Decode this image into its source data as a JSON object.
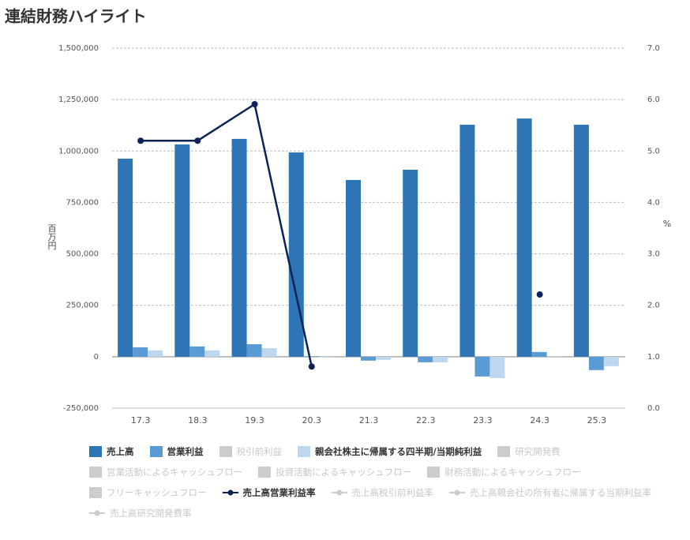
{
  "chart_data": {
    "type": "bar",
    "title": "連結財務ハイライト",
    "y_label": "百万円",
    "y2_label": "%",
    "categories": [
      "17.3",
      "18.3",
      "19.3",
      "20.3",
      "21.3",
      "22.3",
      "23.3",
      "24.3",
      "25.3"
    ],
    "ylim": [
      -250000,
      1500000
    ],
    "yticks": [
      {
        "value": -250000,
        "label": "-250,000"
      },
      0,
      {
        "value": 250000,
        "label": "250,000"
      },
      {
        "value": 500000,
        "label": "500,000"
      },
      {
        "value": 750000,
        "label": "750,000"
      },
      {
        "value": 1000000,
        "label": "1,000,000"
      },
      {
        "value": 1250000,
        "label": "1,250,000"
      },
      {
        "value": 1500000,
        "label": "1,500,000"
      }
    ],
    "y2lim": [
      0,
      7
    ],
    "y2ticks": [
      {
        "value": 0,
        "label": "0.0"
      },
      {
        "value": 1,
        "label": "1.0"
      },
      {
        "value": 2,
        "label": "2.0"
      },
      {
        "value": 3,
        "label": "3.0"
      },
      {
        "value": 4,
        "label": "4.0"
      },
      {
        "value": 5,
        "label": "5.0"
      },
      {
        "value": 6,
        "label": "6.0"
      },
      {
        "value": 7,
        "label": "7.0"
      }
    ],
    "grid": true,
    "series": [
      {
        "name": "売上高",
        "type": "bar",
        "color": "#2e75b6",
        "values": [
          963000,
          1032000,
          1059000,
          993000,
          859000,
          909000,
          1128000,
          1158000,
          1128000
        ]
      },
      {
        "name": "営業利益",
        "type": "bar",
        "color": "#5b9bd5",
        "values": [
          46000,
          50000,
          61000,
          2000,
          -19000,
          -27000,
          -96000,
          23000,
          -65000
        ]
      },
      {
        "name": "税引前利益",
        "type": "bar",
        "color": "#cccccc",
        "visible": false
      },
      {
        "name": "親会社株主に帰属する四半期/当期純利益",
        "type": "bar",
        "color": "#bdd7ee",
        "values": [
          31000,
          31000,
          42000,
          -3000,
          -15000,
          -27000,
          -104000,
          2000,
          -46000
        ]
      },
      {
        "name": "研究開発費",
        "type": "bar",
        "color": "#cccccc",
        "visible": false
      },
      {
        "name": "営業活動によるキャッシュフロー",
        "type": "bar",
        "color": "#cccccc",
        "visible": false
      },
      {
        "name": "投資活動によるキャッシュフロー",
        "type": "bar",
        "color": "#cccccc",
        "visible": false
      },
      {
        "name": "財務活動によるキャッシュフロー",
        "type": "bar",
        "color": "#cccccc",
        "visible": false
      },
      {
        "name": "フリーキャッシュフロー",
        "type": "bar",
        "color": "#cccccc",
        "visible": false
      },
      {
        "name": "売上高営業利益率",
        "type": "line",
        "axis": "y2",
        "color": "#0d2357",
        "values": [
          5.2,
          5.2,
          5.91,
          0.81,
          null,
          null,
          null,
          2.21,
          null
        ]
      },
      {
        "name": "売上高税引前利益率",
        "type": "line",
        "axis": "y2",
        "color": "#cccccc",
        "visible": false
      },
      {
        "name": "売上高親会社の所有者に帰属する当期利益率",
        "type": "line",
        "axis": "y2",
        "color": "#cccccc",
        "visible": false
      },
      {
        "name": "売上高研究開発費率",
        "type": "line",
        "axis": "y2",
        "color": "#cccccc",
        "visible": false
      }
    ]
  }
}
